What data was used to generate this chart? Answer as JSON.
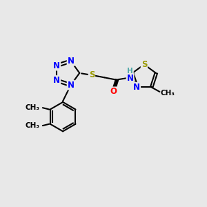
{
  "background_color": "#e8e8e8",
  "atom_colors": {
    "N": "#0000ff",
    "S": "#999900",
    "O": "#ff0000",
    "C": "#000000",
    "H": "#4da6a6"
  },
  "bond_color": "#000000",
  "xlim": [
    0,
    10
  ],
  "ylim": [
    0,
    10
  ]
}
